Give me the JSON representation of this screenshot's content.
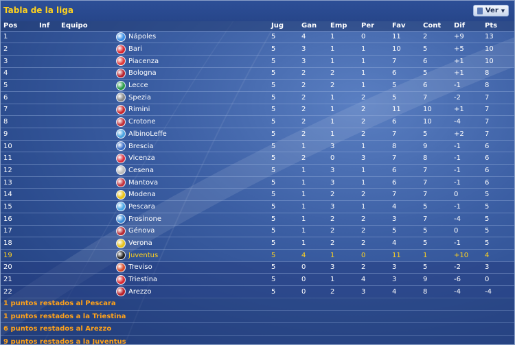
{
  "title": "Tabla de la liga",
  "ver_button": {
    "label": "Ver",
    "icon": "document-icon"
  },
  "columns": [
    "Pos",
    "Inf",
    "Equipo",
    "Jug",
    "Gan",
    "Emp",
    "Per",
    "Fav",
    "Cont",
    "Dif",
    "Pts"
  ],
  "rows": [
    {
      "pos": "1",
      "team": "Nápoles",
      "jug": "5",
      "gan": "4",
      "emp": "1",
      "per": "0",
      "fav": "11",
      "cont": "2",
      "dif": "+9",
      "pts": "13",
      "color": "#3a8ee6"
    },
    {
      "pos": "2",
      "team": "Bari",
      "jug": "5",
      "gan": "3",
      "emp": "1",
      "per": "1",
      "fav": "10",
      "cont": "5",
      "dif": "+5",
      "pts": "10",
      "color": "#d8262e"
    },
    {
      "pos": "3",
      "team": "Piacenza",
      "jug": "5",
      "gan": "3",
      "emp": "1",
      "per": "1",
      "fav": "7",
      "cont": "6",
      "dif": "+1",
      "pts": "10",
      "color": "#e03a3a"
    },
    {
      "pos": "4",
      "team": "Bologna",
      "jug": "5",
      "gan": "2",
      "emp": "2",
      "per": "1",
      "fav": "6",
      "cont": "5",
      "dif": "+1",
      "pts": "8",
      "color": "#b8232f"
    },
    {
      "pos": "5",
      "team": "Lecce",
      "jug": "5",
      "gan": "2",
      "emp": "2",
      "per": "1",
      "fav": "5",
      "cont": "6",
      "dif": "-1",
      "pts": "8",
      "color": "#2a9a4a"
    },
    {
      "pos": "6",
      "team": "Spezia",
      "jug": "5",
      "gan": "2",
      "emp": "1",
      "per": "2",
      "fav": "5",
      "cont": "7",
      "dif": "-2",
      "pts": "7",
      "color": "#888888"
    },
    {
      "pos": "7",
      "team": "Rimini",
      "jug": "5",
      "gan": "2",
      "emp": "1",
      "per": "2",
      "fav": "11",
      "cont": "10",
      "dif": "+1",
      "pts": "7",
      "color": "#c9282d"
    },
    {
      "pos": "8",
      "team": "Crotone",
      "jug": "5",
      "gan": "2",
      "emp": "1",
      "per": "2",
      "fav": "6",
      "cont": "10",
      "dif": "-4",
      "pts": "7",
      "color": "#c0303a"
    },
    {
      "pos": "9",
      "team": "AlbinoLeffe",
      "jug": "5",
      "gan": "2",
      "emp": "1",
      "per": "2",
      "fav": "7",
      "cont": "5",
      "dif": "+2",
      "pts": "7",
      "color": "#4aa3e0"
    },
    {
      "pos": "10",
      "team": "Brescia",
      "jug": "5",
      "gan": "1",
      "emp": "3",
      "per": "1",
      "fav": "8",
      "cont": "9",
      "dif": "-1",
      "pts": "6",
      "color": "#3a6fc7"
    },
    {
      "pos": "11",
      "team": "Vicenza",
      "jug": "5",
      "gan": "2",
      "emp": "0",
      "per": "3",
      "fav": "7",
      "cont": "8",
      "dif": "-1",
      "pts": "6",
      "color": "#d83040"
    },
    {
      "pos": "12",
      "team": "Cesena",
      "jug": "5",
      "gan": "1",
      "emp": "3",
      "per": "1",
      "fav": "6",
      "cont": "7",
      "dif": "-1",
      "pts": "6",
      "color": "#bbbbbb"
    },
    {
      "pos": "13",
      "team": "Mantova",
      "jug": "5",
      "gan": "1",
      "emp": "3",
      "per": "1",
      "fav": "6",
      "cont": "7",
      "dif": "-1",
      "pts": "6",
      "color": "#c23440"
    },
    {
      "pos": "14",
      "team": "Modena",
      "jug": "5",
      "gan": "1",
      "emp": "2",
      "per": "2",
      "fav": "7",
      "cont": "7",
      "dif": "0",
      "pts": "5",
      "color": "#e8c21a"
    },
    {
      "pos": "15",
      "team": "Pescara",
      "jug": "5",
      "gan": "1",
      "emp": "3",
      "per": "1",
      "fav": "4",
      "cont": "5",
      "dif": "-1",
      "pts": "5",
      "color": "#4aa6e6"
    },
    {
      "pos": "16",
      "team": "Frosinone",
      "jug": "5",
      "gan": "1",
      "emp": "2",
      "per": "2",
      "fav": "3",
      "cont": "7",
      "dif": "-4",
      "pts": "5",
      "color": "#3a8ad6"
    },
    {
      "pos": "17",
      "team": "Génova",
      "jug": "5",
      "gan": "1",
      "emp": "2",
      "per": "2",
      "fav": "5",
      "cont": "5",
      "dif": "0",
      "pts": "5",
      "color": "#b72a34"
    },
    {
      "pos": "18",
      "team": "Verona",
      "jug": "5",
      "gan": "1",
      "emp": "2",
      "per": "2",
      "fav": "4",
      "cont": "5",
      "dif": "-1",
      "pts": "5",
      "color": "#e6c21e"
    },
    {
      "pos": "19",
      "team": "Juventus",
      "jug": "5",
      "gan": "4",
      "emp": "1",
      "per": "0",
      "fav": "11",
      "cont": "1",
      "dif": "+10",
      "pts": "4",
      "color": "#222222",
      "highlight": true
    },
    {
      "pos": "20",
      "team": "Treviso",
      "jug": "5",
      "gan": "0",
      "emp": "3",
      "per": "2",
      "fav": "3",
      "cont": "5",
      "dif": "-2",
      "pts": "3",
      "color": "#d84a2a",
      "relegation": true
    },
    {
      "pos": "21",
      "team": "Triestina",
      "jug": "5",
      "gan": "0",
      "emp": "1",
      "per": "4",
      "fav": "3",
      "cont": "9",
      "dif": "-6",
      "pts": "0",
      "color": "#d82a32",
      "relegation": true
    },
    {
      "pos": "22",
      "team": "Arezzo",
      "jug": "5",
      "gan": "0",
      "emp": "2",
      "per": "3",
      "fav": "4",
      "cont": "8",
      "dif": "-4",
      "pts": "-4",
      "color": "#b8202a",
      "relegation": true
    }
  ],
  "notes": [
    "1 puntos restados al Pescara",
    "1 puntos restados a la Triestina",
    "6 puntos restados al Arezzo",
    "9 puntos restados a la Juventus"
  ]
}
